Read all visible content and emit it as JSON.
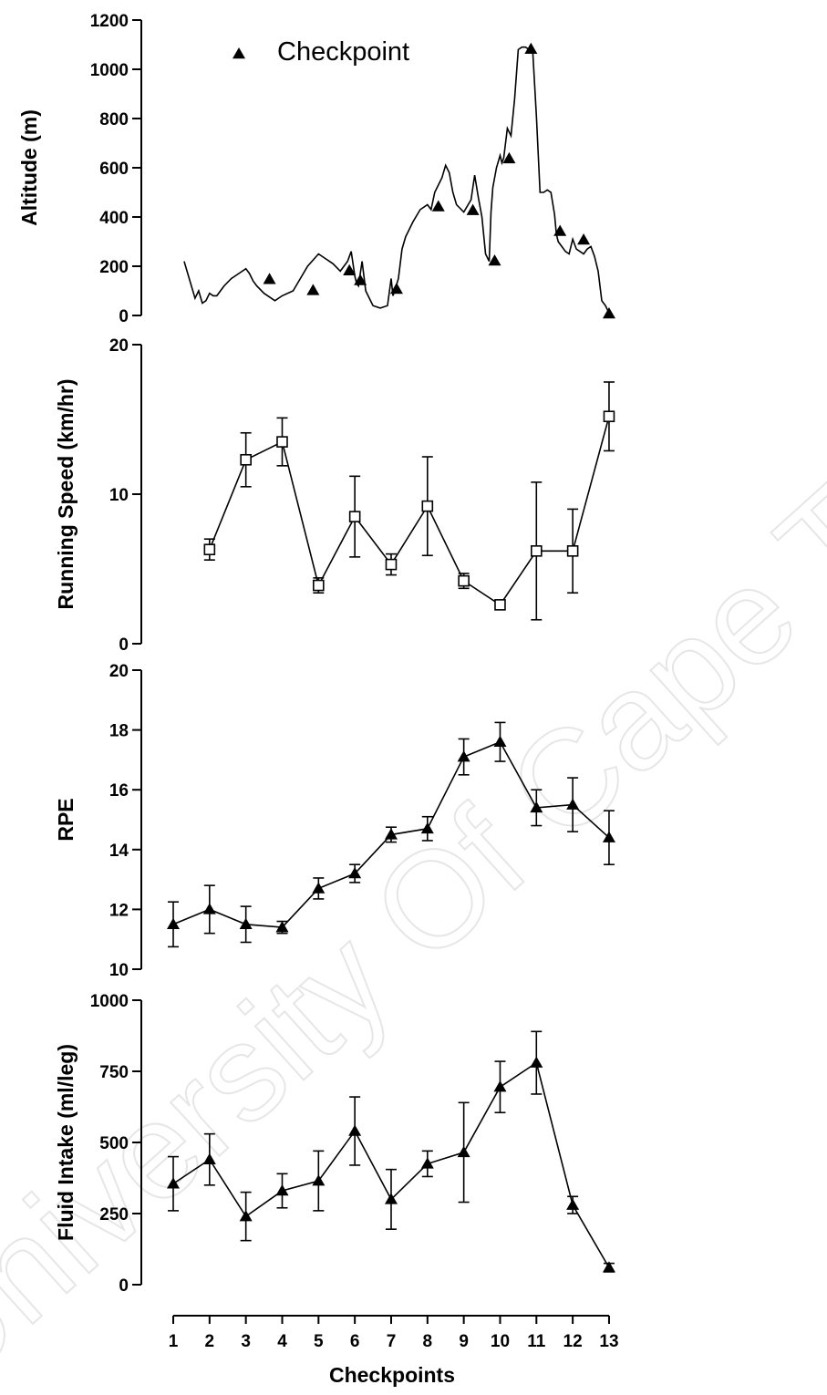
{
  "watermark": "University Of Cape Town",
  "chart_data": [
    {
      "type": "line",
      "id": "altitude",
      "ylabel": "Altitude (m)",
      "ylim": [
        0,
        1200
      ],
      "yticks": [
        0,
        200,
        400,
        600,
        800,
        1000,
        1200
      ],
      "legend": {
        "label": "Checkpoint",
        "placement": "top-left",
        "marker": "filled-triangle"
      },
      "profile_x": [
        1.3,
        1.5,
        1.6,
        1.7,
        1.8,
        1.9,
        2.0,
        2.1,
        2.2,
        2.4,
        2.6,
        2.8,
        3.0,
        3.1,
        3.2,
        3.3,
        3.5,
        3.8,
        4.0,
        4.3,
        4.5,
        4.7,
        5.0,
        5.2,
        5.4,
        5.6,
        5.8,
        5.9,
        6.0,
        6.05,
        6.1,
        6.2,
        6.3,
        6.4,
        6.5,
        6.7,
        6.9,
        7.0,
        7.05,
        7.1,
        7.2,
        7.3,
        7.4,
        7.6,
        7.8,
        8.0,
        8.1,
        8.2,
        8.4,
        8.5,
        8.6,
        8.7,
        8.8,
        9.0,
        9.2,
        9.3,
        9.4,
        9.5,
        9.6,
        9.7,
        9.75,
        9.8,
        9.9,
        10.0,
        10.05,
        10.1,
        10.2,
        10.3,
        10.4,
        10.5,
        10.6,
        10.7,
        10.8,
        10.9,
        11.0,
        11.1,
        11.2,
        11.3,
        11.4,
        11.5,
        11.55,
        11.6,
        11.7,
        11.8,
        11.9,
        12.0,
        12.1,
        12.2,
        12.3,
        12.4,
        12.5,
        12.6,
        12.7,
        12.8,
        12.9,
        13.0
      ],
      "profile_y": [
        220,
        120,
        70,
        100,
        50,
        60,
        90,
        80,
        80,
        120,
        150,
        170,
        190,
        170,
        140,
        120,
        90,
        60,
        80,
        100,
        150,
        200,
        250,
        230,
        210,
        180,
        220,
        260,
        160,
        130,
        120,
        220,
        100,
        70,
        40,
        30,
        40,
        150,
        80,
        100,
        150,
        270,
        320,
        380,
        430,
        450,
        430,
        500,
        560,
        610,
        580,
        500,
        450,
        420,
        470,
        570,
        480,
        400,
        250,
        220,
        420,
        520,
        600,
        650,
        620,
        640,
        760,
        730,
        880,
        1080,
        1090,
        1090,
        1080,
        1070,
        810,
        500,
        500,
        510,
        500,
        410,
        330,
        300,
        280,
        260,
        250,
        310,
        270,
        260,
        250,
        270,
        280,
        240,
        180,
        60,
        40,
        10
      ],
      "checkpoints_x": [
        3.65,
        4.85,
        5.85,
        6.15,
        7.15,
        8.3,
        9.25,
        9.85,
        10.25,
        10.85,
        11.65,
        12.3,
        13.0
      ],
      "checkpoints_y": [
        140,
        95,
        175,
        135,
        100,
        435,
        420,
        215,
        630,
        1075,
        335,
        300,
        0
      ]
    },
    {
      "type": "line",
      "id": "speed",
      "ylabel": "Running Speed (km/hr)",
      "ylim": [
        0,
        20
      ],
      "yticks": [
        0,
        10,
        20
      ],
      "marker": "open-square",
      "x": [
        2,
        3,
        4,
        5,
        6,
        7,
        8,
        9,
        10,
        11,
        12,
        13
      ],
      "values": [
        6.3,
        12.3,
        13.5,
        3.9,
        8.5,
        5.3,
        9.2,
        4.2,
        2.6,
        6.2,
        6.2,
        15.2
      ],
      "errors": [
        0.7,
        1.8,
        1.6,
        0.5,
        2.7,
        0.7,
        3.3,
        0.5,
        0,
        4.6,
        2.8,
        2.3
      ]
    },
    {
      "type": "line",
      "id": "rpe",
      "ylabel": "RPE",
      "ylim": [
        10,
        20
      ],
      "yticks": [
        10,
        12,
        14,
        16,
        18,
        20
      ],
      "marker": "filled-triangle",
      "x": [
        1,
        2,
        3,
        4,
        5,
        6,
        7,
        8,
        9,
        10,
        11,
        12,
        13
      ],
      "values": [
        11.5,
        12.0,
        11.5,
        11.4,
        12.7,
        13.2,
        14.5,
        14.7,
        17.1,
        17.6,
        15.4,
        15.5,
        14.4
      ],
      "errors": [
        0.75,
        0.8,
        0.6,
        0.2,
        0.35,
        0.3,
        0.25,
        0.4,
        0.6,
        0.65,
        0.6,
        0.9,
        0.9
      ]
    },
    {
      "type": "line",
      "id": "fluid",
      "ylabel": "Fluid Intake (ml/leg)",
      "xlabel": "Checkpoints",
      "ylim": [
        0,
        1000
      ],
      "yticks": [
        0,
        250,
        500,
        750,
        1000
      ],
      "xticks": [
        1,
        2,
        3,
        4,
        5,
        6,
        7,
        8,
        9,
        10,
        11,
        12,
        13
      ],
      "marker": "filled-triangle",
      "x": [
        1,
        2,
        3,
        4,
        5,
        6,
        7,
        8,
        9,
        10,
        11,
        12,
        13
      ],
      "values": [
        355,
        440,
        240,
        330,
        365,
        540,
        300,
        425,
        465,
        695,
        780,
        280,
        60
      ],
      "errors": [
        95,
        90,
        85,
        60,
        105,
        120,
        105,
        45,
        175,
        90,
        110,
        30,
        15
      ]
    }
  ]
}
